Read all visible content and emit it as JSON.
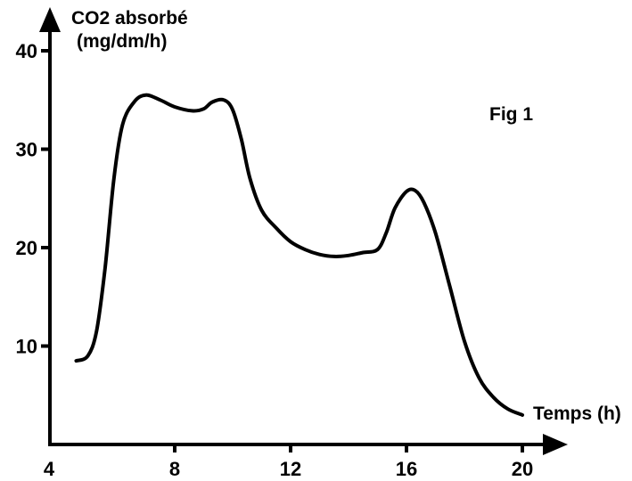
{
  "chart_data": {
    "type": "line",
    "title": "Fig 1",
    "xlabel": "Temps (h)",
    "ylabel_line1": "CO2 absorbé",
    "ylabel_line2": "(mg/dm/h)",
    "xlim": [
      4,
      21
    ],
    "ylim": [
      0,
      42
    ],
    "x_ticks": [
      4,
      8,
      12,
      16,
      20
    ],
    "y_ticks": [
      10,
      20,
      30,
      40
    ],
    "grid": false,
    "legend": "none",
    "series": [
      {
        "color": "#000000",
        "x": [
          4.6,
          5.0,
          5.3,
          5.6,
          5.9,
          6.2,
          6.6,
          7.0,
          7.5,
          8.0,
          8.6,
          9.0,
          9.3,
          9.7,
          10.0,
          10.3,
          10.6,
          11.0,
          11.5,
          12.0,
          12.5,
          13.0,
          13.5,
          14.0,
          14.5,
          15.0,
          15.3,
          15.6,
          16.0,
          16.3,
          16.6,
          17.0,
          17.5,
          18.0,
          18.5,
          19.0,
          19.5,
          20.0
        ],
        "y": [
          8.5,
          9.0,
          11.5,
          18.0,
          27.0,
          32.5,
          34.8,
          35.5,
          35.0,
          34.3,
          33.9,
          34.1,
          34.8,
          35.0,
          34.0,
          31.0,
          27.0,
          23.8,
          22.0,
          20.6,
          19.8,
          19.3,
          19.1,
          19.2,
          19.5,
          19.8,
          21.5,
          24.0,
          25.7,
          25.8,
          24.6,
          21.5,
          16.0,
          10.5,
          6.8,
          4.8,
          3.6,
          3.0
        ]
      }
    ]
  }
}
